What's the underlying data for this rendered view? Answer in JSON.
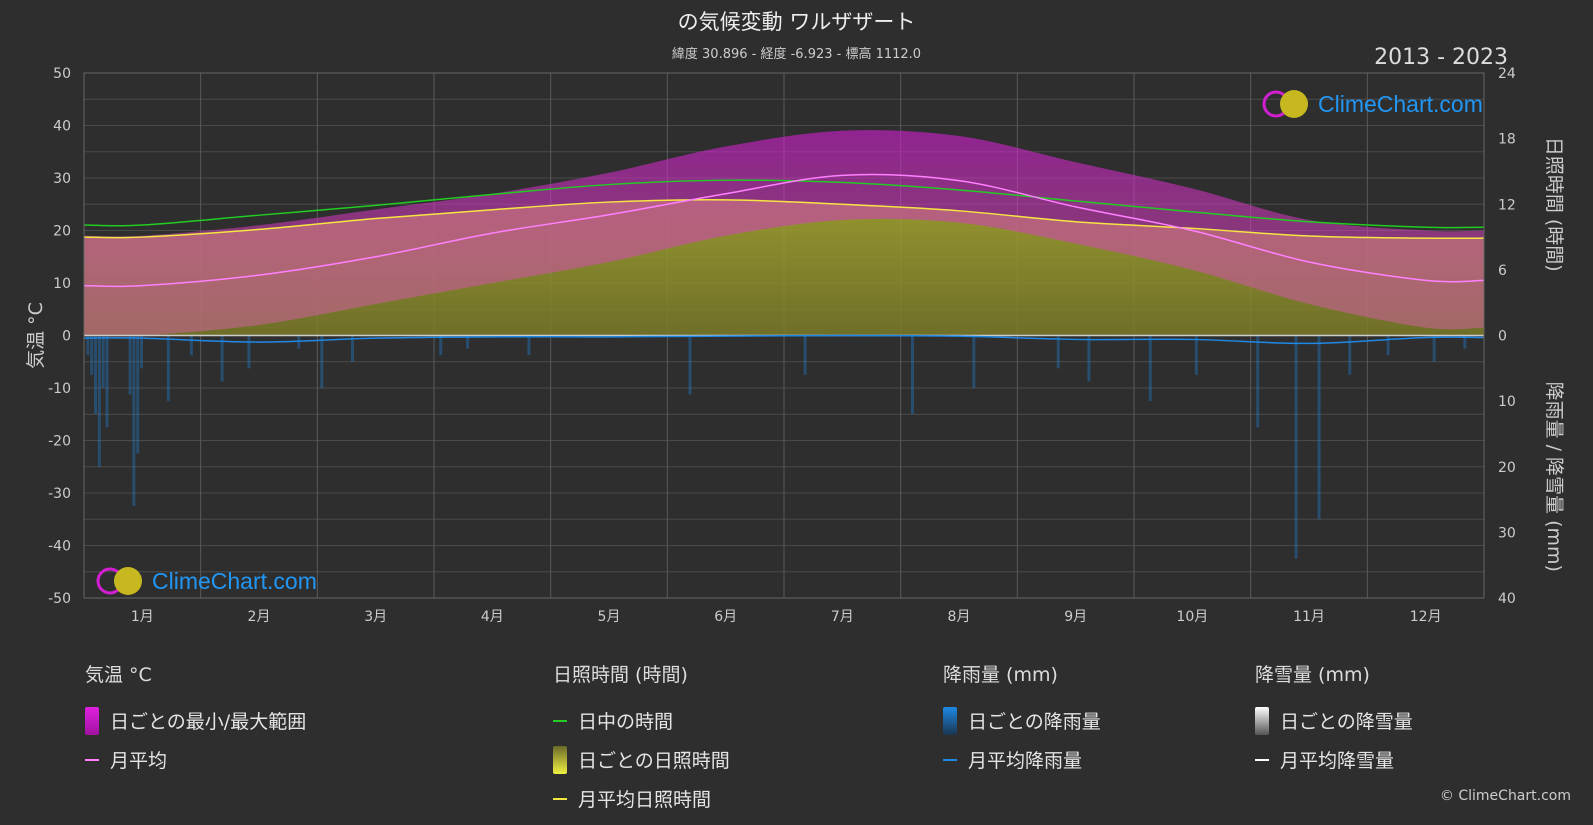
{
  "header": {
    "title": "の気候変動 ワルザザート",
    "subtitle": "緯度 30.896 - 経度 -6.923 - 標高 1112.0",
    "years": "2013 - 2023"
  },
  "copyright": "© ClimeChart.com",
  "logo_text": "ClimeChart.com",
  "colors": {
    "background": "#2e2e2e",
    "temp_range": "#e020e0",
    "temp_avg": "#ff80ff",
    "daylight": "#22cc22",
    "sunshine_daily": "#c8c830",
    "sunshine_avg": "#f5e642",
    "rain": "#1e88e5",
    "snow": "#ffffff",
    "brand_blue": "#2196f3"
  },
  "chart_data": {
    "type": "area",
    "x_months": [
      "1月",
      "2月",
      "3月",
      "4月",
      "5月",
      "6月",
      "7月",
      "8月",
      "9月",
      "10月",
      "11月",
      "12月"
    ],
    "left_axis": {
      "label": "気温 °C",
      "ylim": [
        -50,
        50
      ],
      "ticks": [
        50,
        40,
        30,
        20,
        10,
        0,
        -10,
        -20,
        -30,
        -40,
        -50
      ]
    },
    "right_axis_top": {
      "label": "日照時間 (時間)",
      "ylim": [
        0,
        24
      ],
      "ticks": [
        24,
        18,
        12,
        6,
        0
      ]
    },
    "right_axis_bottom": {
      "label": "降雨量 / 降雪量 (mm)",
      "ylim": [
        0,
        40
      ],
      "ticks": [
        10,
        20,
        30,
        40
      ]
    },
    "grid": true,
    "series": [
      {
        "name": "月平均",
        "unit": "°C",
        "values": [
          9.5,
          11.5,
          15,
          19.5,
          23,
          27,
          30.5,
          29.5,
          24.5,
          20,
          14,
          10.5
        ]
      },
      {
        "name": "日ごとの最小/最大範囲 (最小)",
        "unit": "°C",
        "values": [
          0,
          2,
          6,
          10,
          14,
          19,
          22,
          21.5,
          17.5,
          12.5,
          6,
          1.5
        ]
      },
      {
        "name": "日ごとの最小/最大範囲 (最大)",
        "unit": "°C",
        "values": [
          19,
          21,
          24,
          27,
          31,
          36,
          39,
          38,
          33,
          28,
          22,
          20
        ]
      },
      {
        "name": "日中の時間",
        "unit": "時間",
        "values": [
          10.1,
          11.0,
          11.9,
          12.9,
          13.8,
          14.2,
          14.0,
          13.3,
          12.3,
          11.3,
          10.4,
          9.9
        ]
      },
      {
        "name": "月平均日照時間",
        "unit": "時間",
        "values": [
          9.0,
          9.7,
          10.7,
          11.5,
          12.2,
          12.4,
          12.0,
          11.4,
          10.4,
          9.8,
          9.1,
          8.9
        ]
      },
      {
        "name": "月平均降雨量",
        "unit": "mm",
        "values": [
          0.4,
          1.0,
          0.4,
          0.2,
          0.2,
          0.1,
          0.0,
          0.1,
          0.6,
          0.6,
          1.2,
          0.3
        ]
      },
      {
        "name": "月平均降雪量",
        "unit": "mm",
        "values": [
          0,
          0,
          0,
          0,
          0,
          0,
          0,
          0,
          0,
          0,
          0,
          0
        ]
      }
    ]
  },
  "legend": {
    "temperature": {
      "title": "気温 °C",
      "items": [
        "日ごとの最小/最大範囲",
        "月平均"
      ]
    },
    "sunshine": {
      "title": "日照時間 (時間)",
      "items": [
        "日中の時間",
        "日ごとの日照時間",
        "月平均日照時間"
      ]
    },
    "rain": {
      "title": "降雨量 (mm)",
      "items": [
        "日ごとの降雨量",
        "月平均降雨量"
      ]
    },
    "snow": {
      "title": "降雪量 (mm)",
      "items": [
        "日ごとの降雪量",
        "月平均降雪量"
      ]
    }
  }
}
